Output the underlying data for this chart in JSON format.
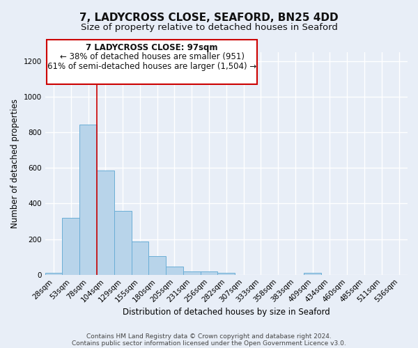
{
  "title": "7, LADYCROSS CLOSE, SEAFORD, BN25 4DD",
  "subtitle": "Size of property relative to detached houses in Seaford",
  "xlabel": "Distribution of detached houses by size in Seaford",
  "ylabel": "Number of detached properties",
  "bar_labels": [
    "28sqm",
    "53sqm",
    "78sqm",
    "104sqm",
    "129sqm",
    "155sqm",
    "180sqm",
    "205sqm",
    "231sqm",
    "256sqm",
    "282sqm",
    "307sqm",
    "333sqm",
    "358sqm",
    "383sqm",
    "409sqm",
    "434sqm",
    "460sqm",
    "485sqm",
    "511sqm",
    "536sqm"
  ],
  "bar_heights": [
    10,
    320,
    845,
    585,
    360,
    185,
    105,
    47,
    20,
    20,
    10,
    0,
    0,
    0,
    0,
    10,
    0,
    0,
    0,
    0,
    0
  ],
  "bar_color": "#b8d4ea",
  "bar_edge_color": "#6aaed6",
  "vline_color": "#cc0000",
  "annotation_line1": "7 LADYCROSS CLOSE: 97sqm",
  "annotation_line2": "← 38% of detached houses are smaller (951)",
  "annotation_line3": "61% of semi-detached houses are larger (1,504) →",
  "annotation_box_facecolor": "#ffffff",
  "annotation_box_edgecolor": "#cc0000",
  "ylim": [
    0,
    1250
  ],
  "yticks": [
    0,
    200,
    400,
    600,
    800,
    1000,
    1200
  ],
  "footer_line1": "Contains HM Land Registry data © Crown copyright and database right 2024.",
  "footer_line2": "Contains public sector information licensed under the Open Government Licence v3.0.",
  "bg_color": "#e8eef7",
  "plot_bg_color": "#e8eef7",
  "grid_color": "#ffffff",
  "title_fontsize": 11,
  "subtitle_fontsize": 9.5,
  "axis_label_fontsize": 8.5,
  "tick_fontsize": 7.5,
  "annotation_fontsize": 8.5,
  "footer_fontsize": 6.5
}
